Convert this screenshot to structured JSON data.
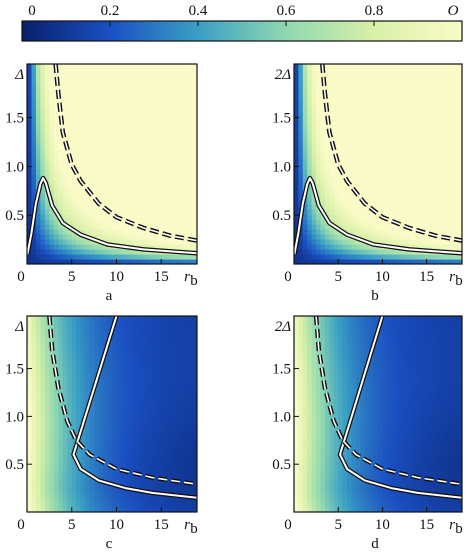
{
  "colorbar": {
    "label": "O",
    "ticks": [
      "0",
      "0.2",
      "0.4",
      "0.6",
      "0.8"
    ],
    "range": [
      0,
      1
    ],
    "colors": [
      "#08206b",
      "#1a4fc1",
      "#3a9fc5",
      "#8fd8b0",
      "#d8f0a8",
      "#fbfbc8"
    ]
  },
  "chart_data": [
    {
      "type": "heatmap",
      "panel_label": "a",
      "ylabel": "Δ",
      "xlabel": "r",
      "xlabel_sub": "b",
      "xlim": [
        0,
        19
      ],
      "ylim": [
        0,
        2.05
      ],
      "xticks": [
        "0",
        "5",
        "10",
        "15"
      ],
      "yticks": [
        "0.5",
        "1.0",
        "1.5"
      ],
      "solid_curve": [
        [
          0.05,
          0.1
        ],
        [
          0.5,
          0.32
        ],
        [
          1.0,
          0.62
        ],
        [
          1.5,
          0.82
        ],
        [
          1.8,
          0.88
        ],
        [
          2.1,
          0.83
        ],
        [
          2.8,
          0.6
        ],
        [
          4,
          0.42
        ],
        [
          6,
          0.3
        ],
        [
          9,
          0.2
        ],
        [
          13,
          0.15
        ],
        [
          19,
          0.11
        ]
      ],
      "dashed_curve": [
        [
          3.2,
          2.05
        ],
        [
          3.5,
          1.75
        ],
        [
          4,
          1.35
        ],
        [
          5,
          1.02
        ],
        [
          6,
          0.85
        ],
        [
          8,
          0.62
        ],
        [
          10,
          0.48
        ],
        [
          13,
          0.37
        ],
        [
          16,
          0.29
        ],
        [
          19,
          0.24
        ]
      ]
    },
    {
      "type": "heatmap",
      "panel_label": "b",
      "ylabel": "2Δ",
      "xlabel": "r",
      "xlabel_sub": "b",
      "xlim": [
        0,
        19
      ],
      "ylim": [
        0,
        2.05
      ],
      "xticks": [
        "0",
        "5",
        "10",
        "15"
      ],
      "yticks": [
        "0.5",
        "1.0",
        "1.5"
      ],
      "solid_curve": [
        [
          0.05,
          0.1
        ],
        [
          0.5,
          0.32
        ],
        [
          1.0,
          0.62
        ],
        [
          1.5,
          0.82
        ],
        [
          1.8,
          0.88
        ],
        [
          2.1,
          0.83
        ],
        [
          2.8,
          0.6
        ],
        [
          4,
          0.42
        ],
        [
          6,
          0.3
        ],
        [
          9,
          0.2
        ],
        [
          13,
          0.15
        ],
        [
          19,
          0.11
        ]
      ],
      "dashed_curve": [
        [
          3.2,
          2.05
        ],
        [
          3.5,
          1.75
        ],
        [
          4,
          1.35
        ],
        [
          5,
          1.02
        ],
        [
          6,
          0.85
        ],
        [
          8,
          0.62
        ],
        [
          10,
          0.48
        ],
        [
          13,
          0.37
        ],
        [
          16,
          0.29
        ],
        [
          19,
          0.24
        ]
      ]
    },
    {
      "type": "heatmap",
      "panel_label": "c",
      "ylabel": "Δ",
      "xlabel": "r",
      "xlabel_sub": "b",
      "xlim": [
        0,
        19
      ],
      "ylim": [
        0,
        2.05
      ],
      "xticks": [
        "0",
        "5",
        "10",
        "15"
      ],
      "yticks": [
        "0.5",
        "1.0",
        "1.5"
      ],
      "solid_curve": [
        [
          10,
          2.05
        ],
        [
          5.2,
          0.6
        ],
        [
          6,
          0.45
        ],
        [
          8,
          0.33
        ],
        [
          11,
          0.25
        ],
        [
          14,
          0.2
        ],
        [
          19,
          0.15
        ]
      ],
      "dashed_curve": [
        [
          2.5,
          2.05
        ],
        [
          2.8,
          1.7
        ],
        [
          3.5,
          1.3
        ],
        [
          4.5,
          0.95
        ],
        [
          5.5,
          0.75
        ],
        [
          7,
          0.6
        ],
        [
          10,
          0.45
        ],
        [
          14,
          0.36
        ],
        [
          19,
          0.29
        ]
      ]
    },
    {
      "type": "heatmap",
      "panel_label": "d",
      "ylabel": "2Δ",
      "xlabel": "r",
      "xlabel_sub": "b",
      "xlim": [
        0,
        19
      ],
      "ylim": [
        0,
        2.05
      ],
      "xticks": [
        "0",
        "5",
        "10",
        "15"
      ],
      "yticks": [
        "0.5",
        "1.0",
        "1.5"
      ],
      "solid_curve": [
        [
          10,
          2.05
        ],
        [
          5.2,
          0.6
        ],
        [
          6,
          0.45
        ],
        [
          8,
          0.33
        ],
        [
          11,
          0.25
        ],
        [
          14,
          0.2
        ],
        [
          19,
          0.15
        ]
      ],
      "dashed_curve": [
        [
          2.5,
          2.05
        ],
        [
          2.8,
          1.7
        ],
        [
          3.5,
          1.3
        ],
        [
          4.5,
          0.95
        ],
        [
          5.5,
          0.75
        ],
        [
          7,
          0.6
        ],
        [
          10,
          0.45
        ],
        [
          14,
          0.36
        ],
        [
          19,
          0.29
        ]
      ]
    }
  ]
}
